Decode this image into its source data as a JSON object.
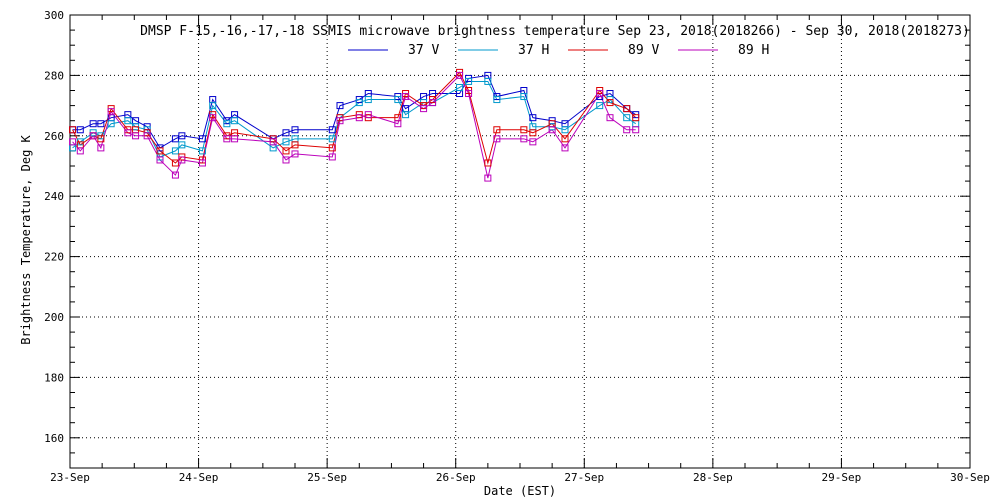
{
  "chart_data": {
    "type": "line",
    "title": "DMSP F-15,-16,-17,-18 SSMIS microwave brightness temperature Sep 23, 2018(2018266) - Sep 30, 2018(2018273)",
    "xlabel": "Date (EST)",
    "ylabel": "Brightness Temperature, Deg K",
    "xlim": [
      0,
      7
    ],
    "ylim": [
      150,
      300
    ],
    "yticks": [
      160,
      180,
      200,
      220,
      240,
      260,
      280,
      300
    ],
    "xticks": [
      {
        "v": 0,
        "label": "23-Sep"
      },
      {
        "v": 1,
        "label": "24-Sep"
      },
      {
        "v": 2,
        "label": "25-Sep"
      },
      {
        "v": 3,
        "label": "26-Sep"
      },
      {
        "v": 4,
        "label": "27-Sep"
      },
      {
        "v": 5,
        "label": "28-Sep"
      },
      {
        "v": 6,
        "label": "29-Sep"
      },
      {
        "v": 7,
        "label": "30-Sep"
      }
    ],
    "grid": true,
    "x": [
      0.02,
      0.08,
      0.18,
      0.24,
      0.32,
      0.45,
      0.51,
      0.6,
      0.7,
      0.82,
      0.87,
      1.03,
      1.11,
      1.22,
      1.28,
      1.58,
      1.68,
      1.75,
      2.04,
      2.1,
      2.25,
      2.32,
      2.55,
      2.61,
      2.75,
      2.82,
      3.03,
      3.1,
      3.25,
      3.32,
      3.53,
      3.6,
      3.75,
      3.85,
      4.12,
      4.2,
      4.33,
      4.4,
      4.57,
      4.63,
      4.73,
      4.82
    ],
    "series": [
      {
        "name": "37 V",
        "color": "#0000cc",
        "values": [
          262,
          262,
          264,
          264,
          266,
          267,
          265,
          263,
          256,
          259,
          260,
          259,
          272,
          265,
          267,
          259,
          261,
          262,
          262,
          270,
          272,
          274,
          273,
          269,
          273,
          274,
          274,
          279,
          280,
          273,
          275,
          266,
          265,
          264,
          273,
          274,
          269,
          267,
          null,
          null,
          null,
          null
        ]
      },
      {
        "name": "37 H",
        "color": "#0099cc",
        "values": [
          256,
          258,
          261,
          260,
          264,
          265,
          263,
          262,
          253,
          255,
          257,
          255,
          270,
          264,
          265,
          256,
          258,
          259,
          259,
          266,
          271,
          272,
          272,
          267,
          271,
          271,
          276,
          278,
          278,
          272,
          273,
          263,
          263,
          262,
          270,
          272,
          266,
          264,
          null,
          null,
          null,
          null
        ]
      },
      {
        "name": "89 V",
        "color": "#dd0000",
        "values": [
          262,
          257,
          260,
          259,
          269,
          262,
          262,
          261,
          255,
          251,
          253,
          252,
          267,
          260,
          261,
          259,
          255,
          257,
          256,
          266,
          267,
          266,
          266,
          274,
          270,
          272,
          281,
          275,
          251,
          262,
          262,
          261,
          264,
          259,
          275,
          271,
          269,
          266,
          null,
          null,
          null,
          null
        ]
      },
      {
        "name": "89 H",
        "color": "#bb00bb",
        "values": [
          258,
          255,
          260,
          256,
          268,
          261,
          260,
          260,
          252,
          247,
          252,
          251,
          266,
          259,
          259,
          258,
          252,
          254,
          253,
          265,
          266,
          267,
          264,
          273,
          269,
          271,
          280,
          274,
          246,
          259,
          259,
          258,
          262,
          256,
          274,
          266,
          262,
          262,
          null,
          null,
          null,
          null
        ]
      }
    ]
  }
}
